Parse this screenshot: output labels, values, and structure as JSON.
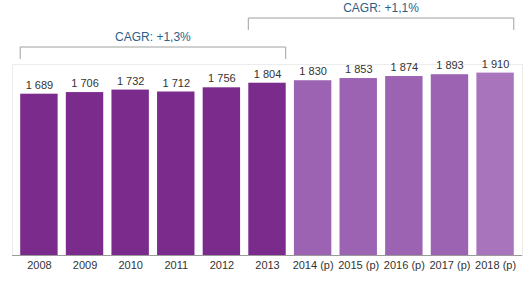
{
  "chart_data": {
    "type": "bar",
    "categories": [
      "2008",
      "2009",
      "2010",
      "2011",
      "2012",
      "2013",
      "2014 (p)",
      "2015 (p)",
      "2016 (p)",
      "2017 (p)",
      "2018 (p)"
    ],
    "values": [
      1689,
      1706,
      1732,
      1712,
      1756,
      1804,
      1830,
      1853,
      1874,
      1893,
      1910
    ],
    "value_labels": [
      "1 689",
      "1 706",
      "1 732",
      "1 712",
      "1 756",
      "1 804",
      "1 830",
      "1 853",
      "1 874",
      "1 893",
      "1 910"
    ],
    "colors": [
      "#7a2b8c",
      "#7a2b8c",
      "#7a2b8c",
      "#7a2b8c",
      "#7a2b8c",
      "#7a2b8c",
      "#9c63b2",
      "#9c63b2",
      "#9c63b2",
      "#9c63b2",
      "#a875bd"
    ],
    "ylim": [
      0,
      2000
    ],
    "data_labels": true,
    "tick_labels": "x",
    "grid": false,
    "annotations": [
      {
        "text": "CAGR: +1,3%",
        "from": "2008",
        "to": "2013"
      },
      {
        "text": "CAGR: +1,1%",
        "from": "2013",
        "to": "2018 (p)"
      }
    ]
  }
}
